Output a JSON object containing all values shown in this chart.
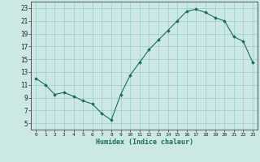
{
  "xlabel": "Humidex (Indice chaleur)",
  "background_color": "#cce8e4",
  "grid_color": "#99cccc",
  "line_color": "#1a6b5a",
  "marker_color": "#1a6b5a",
  "x": [
    0,
    1,
    2,
    3,
    4,
    5,
    6,
    7,
    8,
    9,
    10,
    11,
    12,
    13,
    14,
    15,
    16,
    17,
    18,
    19,
    20,
    21,
    22,
    23
  ],
  "y": [
    12,
    11,
    9.5,
    9.8,
    9.2,
    8.5,
    8.0,
    6.5,
    5.5,
    9.5,
    12.5,
    14.5,
    16.5,
    18.0,
    19.5,
    21.0,
    22.5,
    22.8,
    22.3,
    21.5,
    21.0,
    18.5,
    17.8,
    14.5
  ],
  "ylim": [
    4,
    24
  ],
  "yticks": [
    5,
    7,
    9,
    11,
    13,
    15,
    17,
    19,
    21,
    23
  ],
  "xlim": [
    -0.5,
    23.5
  ]
}
